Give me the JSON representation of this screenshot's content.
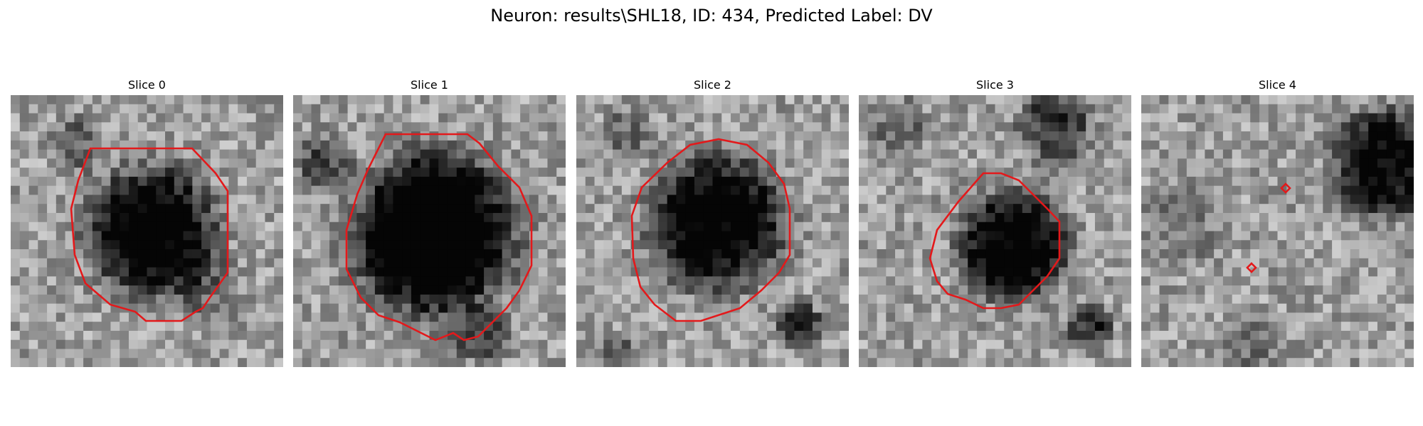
{
  "figure": {
    "title": "Neuron: results\\SHL18, ID: 434, Predicted Label: DV"
  },
  "colors": {
    "contour": "#e3191b"
  },
  "slices": [
    {
      "title": "Slice 0"
    },
    {
      "title": "Slice 1"
    },
    {
      "title": "Slice 2"
    },
    {
      "title": "Slice 3"
    },
    {
      "title": "Slice 4"
    }
  ]
}
